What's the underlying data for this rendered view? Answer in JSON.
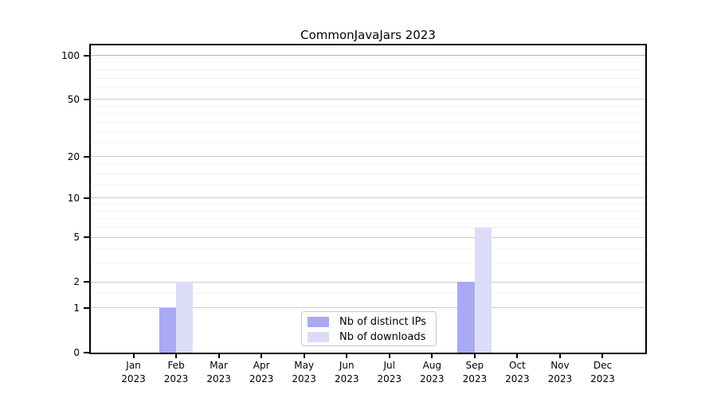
{
  "chart_data": {
    "type": "bar",
    "title": "CommonJavaJars 2023",
    "categories": [
      "Jan",
      "Feb",
      "Mar",
      "Apr",
      "May",
      "Jun",
      "Jul",
      "Aug",
      "Sep",
      "Oct",
      "Nov",
      "Dec"
    ],
    "category_year": "2023",
    "series": [
      {
        "name": "Nb of distinct IPs",
        "color": "#a9a9f4",
        "values": [
          0,
          1,
          0,
          0,
          0,
          0,
          0,
          0,
          2,
          0,
          0,
          0
        ]
      },
      {
        "name": "Nb of downloads",
        "color": "#dcdcf8",
        "values": [
          0,
          2,
          0,
          0,
          0,
          0,
          0,
          0,
          6,
          0,
          0,
          0
        ]
      }
    ],
    "yscale": "log1p",
    "ylim": [
      0,
      117
    ],
    "y_major_ticks": [
      0,
      1,
      2,
      5,
      10,
      20,
      50,
      100
    ],
    "y_minor_ticks": [
      1.5,
      3,
      4,
      6,
      7,
      8,
      9,
      12.5,
      15,
      17.5,
      25,
      30,
      35,
      40,
      45,
      60,
      70,
      80,
      90
    ],
    "grid": "horizontal",
    "legend_position": "inside-bottom-center",
    "colors": {
      "background": "#ffffff",
      "axis": "#000000",
      "text": "#000000",
      "grid_major": "#cbcbcb",
      "grid_strong": "#b3b3b3",
      "grid_minor": "#f2f2f2"
    }
  }
}
